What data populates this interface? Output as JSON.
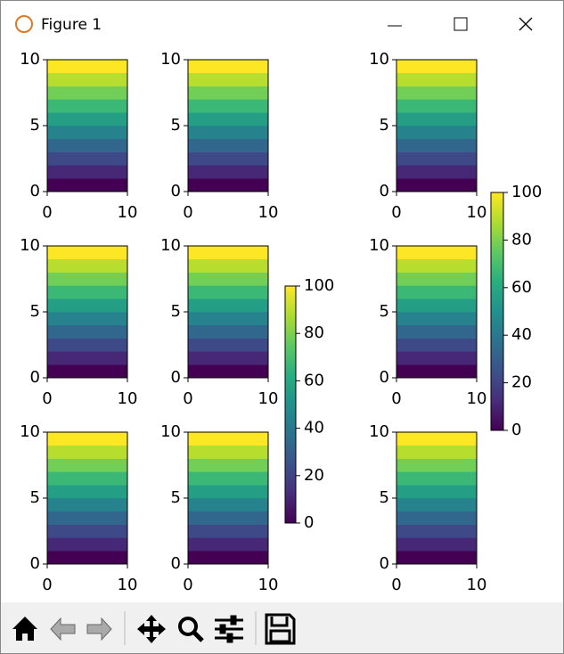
{
  "window": {
    "title": "Figure 1"
  },
  "chart_data": [
    {
      "type": "heatmap",
      "cmap": "viridis",
      "xlim": [
        0,
        10
      ],
      "ylim": [
        0,
        10
      ],
      "xticks": [
        0,
        10
      ],
      "yticks": [
        0,
        5,
        10
      ],
      "clim": [
        0,
        100
      ],
      "z": [
        0,
        11,
        22,
        33,
        44,
        56,
        67,
        78,
        89,
        100
      ]
    },
    {
      "type": "heatmap",
      "cmap": "viridis",
      "xlim": [
        0,
        10
      ],
      "ylim": [
        0,
        10
      ],
      "xticks": [
        0,
        10
      ],
      "yticks": [
        0,
        5,
        10
      ],
      "clim": [
        0,
        100
      ],
      "z": [
        0,
        11,
        22,
        33,
        44,
        56,
        67,
        78,
        89,
        100
      ]
    },
    {
      "type": "heatmap",
      "cmap": "viridis",
      "xlim": [
        0,
        10
      ],
      "ylim": [
        0,
        10
      ],
      "xticks": [
        0,
        10
      ],
      "yticks": [
        0,
        5,
        10
      ],
      "clim": [
        0,
        100
      ],
      "z": [
        0,
        11,
        22,
        33,
        44,
        56,
        67,
        78,
        89,
        100
      ]
    },
    {
      "type": "heatmap",
      "cmap": "viridis",
      "xlim": [
        0,
        10
      ],
      "ylim": [
        0,
        10
      ],
      "xticks": [
        0,
        10
      ],
      "yticks": [
        0,
        5,
        10
      ],
      "clim": [
        0,
        100
      ],
      "z": [
        0,
        11,
        22,
        33,
        44,
        56,
        67,
        78,
        89,
        100
      ]
    },
    {
      "type": "heatmap",
      "cmap": "viridis",
      "xlim": [
        0,
        10
      ],
      "ylim": [
        0,
        10
      ],
      "xticks": [
        0,
        10
      ],
      "yticks": [
        0,
        5,
        10
      ],
      "clim": [
        0,
        100
      ],
      "z": [
        0,
        11,
        22,
        33,
        44,
        56,
        67,
        78,
        89,
        100
      ]
    },
    {
      "type": "heatmap",
      "cmap": "viridis",
      "xlim": [
        0,
        10
      ],
      "ylim": [
        0,
        10
      ],
      "xticks": [
        0,
        10
      ],
      "yticks": [
        0,
        5,
        10
      ],
      "clim": [
        0,
        100
      ],
      "z": [
        0,
        11,
        22,
        33,
        44,
        56,
        67,
        78,
        89,
        100
      ]
    },
    {
      "type": "heatmap",
      "cmap": "viridis",
      "xlim": [
        0,
        10
      ],
      "ylim": [
        0,
        10
      ],
      "xticks": [
        0,
        10
      ],
      "yticks": [
        0,
        5,
        10
      ],
      "clim": [
        0,
        100
      ],
      "z": [
        0,
        11,
        22,
        33,
        44,
        56,
        67,
        78,
        89,
        100
      ]
    },
    {
      "type": "heatmap",
      "cmap": "viridis",
      "xlim": [
        0,
        10
      ],
      "ylim": [
        0,
        10
      ],
      "xticks": [
        0,
        10
      ],
      "yticks": [
        0,
        5,
        10
      ],
      "clim": [
        0,
        100
      ],
      "z": [
        0,
        11,
        22,
        33,
        44,
        56,
        67,
        78,
        89,
        100
      ]
    },
    {
      "type": "heatmap",
      "cmap": "viridis",
      "xlim": [
        0,
        10
      ],
      "ylim": [
        0,
        10
      ],
      "xticks": [
        0,
        10
      ],
      "yticks": [
        0,
        5,
        10
      ],
      "clim": [
        0,
        100
      ],
      "z": [
        0,
        11,
        22,
        33,
        44,
        56,
        67,
        78,
        89,
        100
      ]
    },
    {
      "type": "colorbar",
      "cmap": "viridis",
      "ylim": [
        0,
        100
      ],
      "yticks": [
        0,
        20,
        40,
        60,
        80,
        100
      ]
    },
    {
      "type": "colorbar",
      "cmap": "viridis",
      "ylim": [
        0,
        100
      ],
      "yticks": [
        0,
        20,
        40,
        60,
        80,
        100
      ]
    }
  ]
}
